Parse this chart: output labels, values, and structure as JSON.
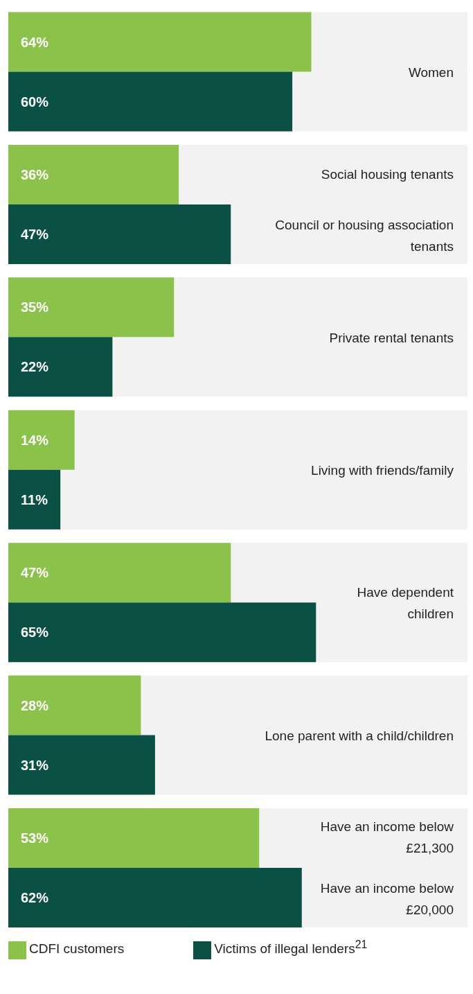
{
  "chart_data": {
    "type": "bar",
    "orientation": "horizontal",
    "categories": [
      "Women",
      "Social housing tenants",
      "Private rental tenants",
      "Living with friends/family",
      "Have dependent children",
      "Lone parent with a child/children",
      "Have an income below £21,300"
    ],
    "series": [
      {
        "name": "CDFI customers",
        "color": "#8bc34a",
        "values": [
          64,
          36,
          35,
          14,
          47,
          28,
          53
        ],
        "value_labels": [
          "64%",
          "36%",
          "35%",
          "14%",
          "47%",
          "28%",
          "53%"
        ]
      },
      {
        "name": "Victims of illegal lenders$^{21}$",
        "color": "#0b5045",
        "values": [
          60,
          47,
          22,
          11,
          65,
          31,
          62
        ],
        "value_labels": [
          "60%",
          "47%",
          "22%",
          "11%",
          "65%",
          "31%",
          "62%"
        ]
      }
    ],
    "annotations": [
      "Council or housing association tenants",
      "Have an income below £20,000"
    ],
    "xlim": [
      0,
      97
    ],
    "tick_labels": "y",
    "legend": "bottom left"
  }
}
